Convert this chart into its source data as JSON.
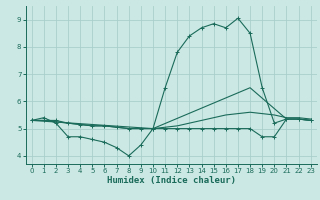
{
  "xlabel": "Humidex (Indice chaleur)",
  "bg_color": "#cce8e4",
  "grid_color": "#aacfcb",
  "line_color": "#1a6b5a",
  "xlim": [
    -0.5,
    23.5
  ],
  "ylim": [
    3.7,
    9.5
  ],
  "yticks": [
    4,
    5,
    6,
    7,
    8,
    9
  ],
  "xticks": [
    0,
    1,
    2,
    3,
    4,
    5,
    6,
    7,
    8,
    9,
    10,
    11,
    12,
    13,
    14,
    15,
    16,
    17,
    18,
    19,
    20,
    21,
    22,
    23
  ],
  "series": [
    {
      "x": [
        0,
        1,
        2,
        3,
        4,
        5,
        6,
        7,
        8,
        9,
        10,
        11,
        12,
        13,
        14,
        15,
        16,
        17,
        18,
        19,
        20,
        21,
        22,
        23
      ],
      "y": [
        5.3,
        5.4,
        5.2,
        4.7,
        4.7,
        4.6,
        4.5,
        4.3,
        4.0,
        4.4,
        5.0,
        5.0,
        5.0,
        5.0,
        5.0,
        5.0,
        5.0,
        5.0,
        5.0,
        4.7,
        4.7,
        5.35,
        5.35,
        5.3
      ],
      "marker": true
    },
    {
      "x": [
        0,
        1,
        2,
        3,
        4,
        5,
        6,
        7,
        8,
        9,
        10,
        11,
        12,
        13,
        14,
        15,
        16,
        17,
        18,
        19,
        20,
        21,
        22,
        23
      ],
      "y": [
        5.3,
        5.3,
        5.25,
        5.2,
        5.15,
        5.1,
        5.1,
        5.05,
        5.0,
        5.0,
        5.0,
        5.05,
        5.1,
        5.2,
        5.3,
        5.4,
        5.5,
        5.55,
        5.6,
        5.55,
        5.5,
        5.4,
        5.4,
        5.35
      ],
      "marker": false
    },
    {
      "x": [
        0,
        1,
        2,
        3,
        4,
        5,
        6,
        7,
        8,
        9,
        10,
        11,
        12,
        13,
        14,
        15,
        16,
        17,
        18,
        19,
        20,
        21,
        22,
        23
      ],
      "y": [
        5.3,
        5.3,
        5.3,
        5.2,
        5.15,
        5.1,
        5.1,
        5.05,
        5.0,
        5.0,
        5.0,
        6.5,
        7.8,
        8.4,
        8.7,
        8.85,
        8.7,
        9.05,
        8.5,
        6.5,
        5.2,
        5.35,
        5.35,
        5.3
      ],
      "marker": true
    },
    {
      "x": [
        0,
        10,
        18,
        21,
        22,
        23
      ],
      "y": [
        5.3,
        5.0,
        6.5,
        5.35,
        5.35,
        5.3
      ],
      "marker": false
    }
  ]
}
